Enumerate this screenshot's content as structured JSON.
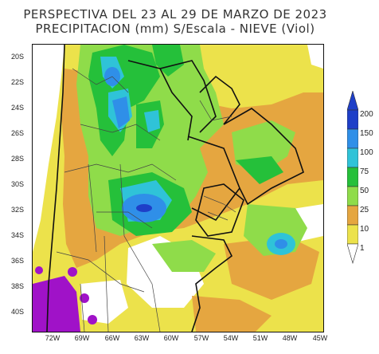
{
  "map": {
    "title_line1": "PERSPECTIVA DEL 23 AL 29  DE MARZO DE 2023",
    "title_line2": "PRECIPITACION (mm) S/Escala - NIEVE (Viol)",
    "lat_labels": [
      "20S",
      "22S",
      "24S",
      "26S",
      "28S",
      "30S",
      "32S",
      "34S",
      "36S",
      "38S",
      "40S"
    ],
    "lon_labels": [
      "72W",
      "69W",
      "66W",
      "63W",
      "60W",
      "57W",
      "54W",
      "51W",
      "48W",
      "45W"
    ],
    "scale": {
      "labels": [
        "200",
        "150",
        "100",
        "75",
        "50",
        "25",
        "10",
        "1"
      ],
      "colors": [
        "#1e3fc8",
        "#2f8fe8",
        "#2fc3d8",
        "#25c03a",
        "#8fdc4a",
        "#e5a640",
        "#ece24b",
        "#ffffff"
      ]
    },
    "snow_color": "#a012c8",
    "land_background": "#ffffff"
  }
}
